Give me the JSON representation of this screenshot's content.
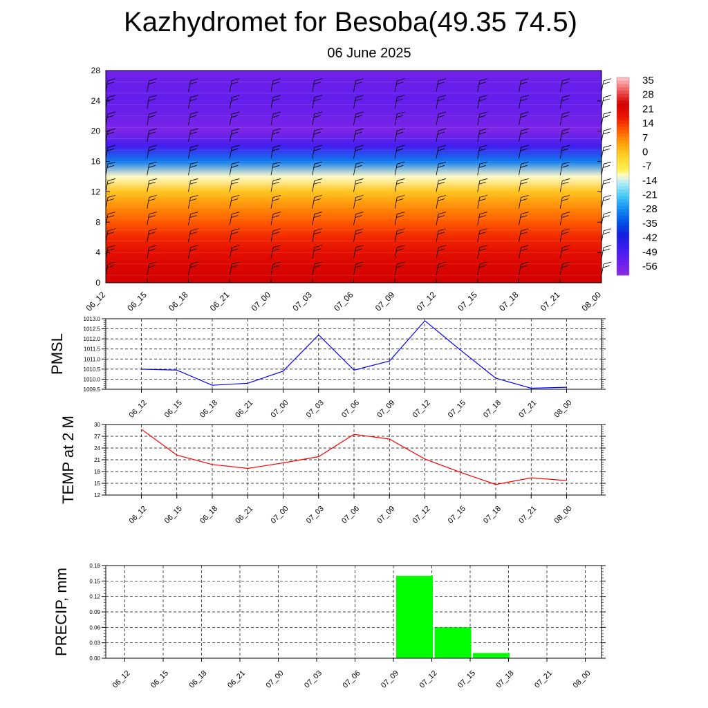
{
  "header": {
    "title": "Kazhydromet for Besoba(49.35 74.5)",
    "subtitle": "06 June 2025"
  },
  "time_labels": [
    "06_12",
    "06_15",
    "06_18",
    "06_21",
    "07_00",
    "07_03",
    "07_06",
    "07_09",
    "07_12",
    "07_15",
    "07_18",
    "07_21",
    "08_00"
  ],
  "colors": {
    "pmsl_line": "#0000ff",
    "temp_line": "#ff0000",
    "precip_bar": "#00ff00",
    "grid": "#000000"
  },
  "chart_data": [
    {
      "type": "heatmap",
      "title": "",
      "xlabel": "",
      "ylabel": "",
      "x": [
        "06_12",
        "06_15",
        "06_18",
        "06_21",
        "07_00",
        "07_03",
        "07_06",
        "07_09",
        "07_12",
        "07_15",
        "07_18",
        "07_21",
        "08_00"
      ],
      "ylim": [
        0,
        28
      ],
      "yticks": [
        0,
        4,
        8,
        12,
        16,
        20,
        24,
        28
      ],
      "colorbar": {
        "ticks": [
          35,
          28,
          21,
          14,
          7,
          0,
          -7,
          -14,
          -21,
          -28,
          -35,
          -42,
          -49,
          -56
        ],
        "range": [
          -63,
          42
        ]
      },
      "level_temperature_profile": {
        "levels": [
          0,
          2,
          4,
          6,
          8,
          10,
          12,
          14,
          16,
          18,
          20,
          22,
          24,
          26,
          28
        ],
        "values": [
          28,
          26,
          23,
          19,
          14,
          9,
          2,
          -10,
          -30,
          -50,
          -60,
          -57,
          -55,
          -56,
          -58
        ]
      },
      "wind_barbs": true
    },
    {
      "type": "line",
      "ylabel": "PMSL",
      "categories": [
        "06_12",
        "06_15",
        "06_18",
        "06_21",
        "07_00",
        "07_03",
        "07_06",
        "07_09",
        "07_12",
        "07_15",
        "07_18",
        "07_21",
        "08_00"
      ],
      "values": [
        1010.5,
        1010.45,
        1009.7,
        1009.8,
        1010.4,
        1012.2,
        1010.45,
        1010.9,
        1012.9,
        1011.45,
        1010.05,
        1009.55,
        1009.6
      ],
      "ylim": [
        1009.5,
        1013.0
      ],
      "yticks": [
        "1009.5",
        "1010.0",
        "1010.5",
        "1011.0",
        "1011.5",
        "1012.0",
        "1012.5",
        "1013.0"
      ],
      "grid": true
    },
    {
      "type": "line",
      "ylabel": "TEMP at 2 M",
      "categories": [
        "06_12",
        "06_15",
        "06_18",
        "06_21",
        "07_00",
        "07_03",
        "07_06",
        "07_09",
        "07_12",
        "07_15",
        "07_18",
        "07_21",
        "08_00"
      ],
      "values": [
        28.8,
        22.2,
        19.8,
        18.8,
        20.2,
        21.8,
        27.5,
        26.3,
        21.2,
        17.8,
        14.7,
        16.4,
        15.7
      ],
      "ylim": [
        12,
        30
      ],
      "yticks": [
        "12",
        "15",
        "18",
        "21",
        "24",
        "27",
        "30"
      ],
      "grid": true
    },
    {
      "type": "bar",
      "ylabel": "PRECIP, mm",
      "categories": [
        "06_12",
        "06_15",
        "06_18",
        "06_21",
        "07_00",
        "07_03",
        "07_06",
        "07_09",
        "07_12",
        "07_15",
        "07_18",
        "07_21",
        "08_00"
      ],
      "values": [
        0,
        0,
        0,
        0,
        0,
        0,
        0,
        0.16,
        0.06,
        0.01,
        0,
        0,
        0
      ],
      "ylim": [
        0,
        0.18
      ],
      "yticks": [
        "0.00",
        "0.03",
        "0.06",
        "0.09",
        "0.12",
        "0.15",
        "0.18"
      ],
      "grid": true
    }
  ]
}
